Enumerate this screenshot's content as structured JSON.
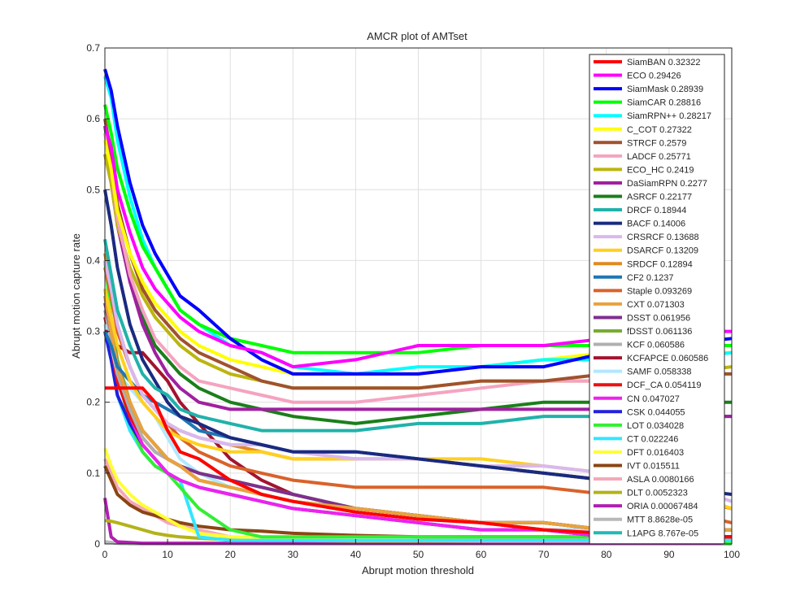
{
  "chart_data": {
    "type": "line",
    "title": "AMCR plot of AMTset",
    "xlabel": "Abrupt motion threshold",
    "ylabel": "Abrupt motion capture rate",
    "xlim": [
      0,
      100
    ],
    "ylim": [
      0,
      0.7
    ],
    "xticks": [
      "0",
      "10",
      "20",
      "30",
      "40",
      "50",
      "60",
      "70",
      "80",
      "90",
      "100"
    ],
    "yticks": [
      "0",
      "0.1",
      "0.2",
      "0.3",
      "0.4",
      "0.5",
      "0.6",
      "0.7"
    ],
    "grid": true,
    "legend_position": "top-right",
    "x": [
      0,
      1,
      2,
      4,
      6,
      8,
      10,
      12,
      15,
      20,
      25,
      30,
      40,
      50,
      60,
      70,
      80,
      90,
      100
    ],
    "series": [
      {
        "name": "SiamBAN 0.32322",
        "color": "#ff0000",
        "values": [
          0.22,
          0.22,
          0.22,
          0.22,
          0.22,
          0.2,
          0.16,
          0.13,
          0.12,
          0.09,
          0.07,
          0.06,
          0.045,
          0.035,
          0.03,
          0.02,
          0.015,
          0.01,
          0.01
        ]
      },
      {
        "name": "ECO 0.29426",
        "color": "#ff00ff",
        "values": [
          0.59,
          0.56,
          0.5,
          0.44,
          0.39,
          0.36,
          0.34,
          0.32,
          0.3,
          0.28,
          0.27,
          0.25,
          0.26,
          0.28,
          0.28,
          0.28,
          0.29,
          0.3,
          0.3
        ]
      },
      {
        "name": "SiamMask 0.28939",
        "color": "#0000ff",
        "values": [
          0.67,
          0.64,
          0.59,
          0.51,
          0.45,
          0.41,
          0.38,
          0.35,
          0.33,
          0.29,
          0.26,
          0.24,
          0.24,
          0.24,
          0.25,
          0.25,
          0.27,
          0.28,
          0.29
        ]
      },
      {
        "name": "SiamCAR 0.28816",
        "color": "#00ff00",
        "values": [
          0.62,
          0.58,
          0.53,
          0.47,
          0.42,
          0.39,
          0.36,
          0.33,
          0.31,
          0.29,
          0.28,
          0.27,
          0.27,
          0.27,
          0.28,
          0.28,
          0.28,
          0.28,
          0.28
        ]
      },
      {
        "name": "SiamRPN++ 0.28217",
        "color": "#00ffff",
        "values": [
          0.66,
          0.63,
          0.57,
          0.49,
          0.43,
          0.39,
          0.36,
          0.33,
          0.31,
          0.28,
          0.27,
          0.25,
          0.24,
          0.25,
          0.25,
          0.26,
          0.26,
          0.26,
          0.27
        ]
      },
      {
        "name": "C_COT 0.27322",
        "color": "#ffff00",
        "values": [
          0.57,
          0.53,
          0.47,
          0.41,
          0.37,
          0.34,
          0.32,
          0.3,
          0.28,
          0.26,
          0.25,
          0.24,
          0.24,
          0.24,
          0.25,
          0.26,
          0.27,
          0.27,
          0.27
        ]
      },
      {
        "name": "STRCF 0.2579",
        "color": "#a0522d",
        "values": [
          0.6,
          0.55,
          0.48,
          0.41,
          0.36,
          0.33,
          0.31,
          0.29,
          0.27,
          0.25,
          0.23,
          0.22,
          0.22,
          0.22,
          0.23,
          0.23,
          0.24,
          0.24,
          0.24
        ]
      },
      {
        "name": "LADCF 0.25771",
        "color": "#f5a3c0",
        "values": [
          0.58,
          0.53,
          0.46,
          0.38,
          0.33,
          0.29,
          0.27,
          0.25,
          0.23,
          0.22,
          0.21,
          0.2,
          0.2,
          0.21,
          0.22,
          0.23,
          0.23,
          0.24,
          0.24
        ]
      },
      {
        "name": "ECO_HC 0.2419",
        "color": "#bcb50f",
        "values": [
          0.55,
          0.51,
          0.45,
          0.39,
          0.35,
          0.32,
          0.3,
          0.28,
          0.26,
          0.24,
          0.23,
          0.22,
          0.22,
          0.22,
          0.23,
          0.23,
          0.23,
          0.24,
          0.25
        ]
      },
      {
        "name": "DaSiamRPN 0.2277",
        "color": "#a020a0",
        "values": [
          0.55,
          0.51,
          0.45,
          0.37,
          0.31,
          0.27,
          0.24,
          0.22,
          0.2,
          0.19,
          0.19,
          0.19,
          0.19,
          0.19,
          0.19,
          0.19,
          0.19,
          0.18,
          0.18
        ]
      },
      {
        "name": "ASRCF 0.22177",
        "color": "#1a7f1a",
        "values": [
          0.59,
          0.53,
          0.46,
          0.38,
          0.32,
          0.28,
          0.26,
          0.24,
          0.22,
          0.2,
          0.19,
          0.18,
          0.17,
          0.18,
          0.19,
          0.2,
          0.2,
          0.2,
          0.2
        ]
      },
      {
        "name": "DRCF 0.18944",
        "color": "#20b2aa",
        "values": [
          0.43,
          0.38,
          0.33,
          0.28,
          0.24,
          0.22,
          0.21,
          0.19,
          0.18,
          0.17,
          0.16,
          0.16,
          0.16,
          0.17,
          0.17,
          0.18,
          0.18,
          0.18,
          0.18
        ]
      },
      {
        "name": "BACF 0.14006",
        "color": "#1a2a80",
        "values": [
          0.5,
          0.45,
          0.39,
          0.31,
          0.26,
          0.23,
          0.2,
          0.18,
          0.17,
          0.15,
          0.14,
          0.13,
          0.13,
          0.12,
          0.11,
          0.1,
          0.09,
          0.08,
          0.07
        ]
      },
      {
        "name": "CRSRCF 0.13688",
        "color": "#d8b8f0",
        "values": [
          0.4,
          0.36,
          0.31,
          0.25,
          0.21,
          0.19,
          0.17,
          0.16,
          0.15,
          0.14,
          0.14,
          0.13,
          0.12,
          0.12,
          0.11,
          0.11,
          0.1,
          0.09,
          0.06
        ]
      },
      {
        "name": "DSARCF 0.13209",
        "color": "#ffd020",
        "values": [
          0.36,
          0.32,
          0.28,
          0.23,
          0.2,
          0.18,
          0.16,
          0.15,
          0.14,
          0.13,
          0.13,
          0.12,
          0.12,
          0.12,
          0.12,
          0.11,
          0.1,
          0.08,
          0.05
        ]
      },
      {
        "name": "SRDCF 0.12894",
        "color": "#e08a20",
        "values": [
          0.41,
          0.36,
          0.31,
          0.25,
          0.21,
          0.19,
          0.17,
          0.16,
          0.15,
          0.14,
          0.13,
          0.12,
          0.12,
          0.12,
          0.11,
          0.1,
          0.09,
          0.07,
          0.05
        ]
      },
      {
        "name": "CF2 0.1237",
        "color": "#1f77b4",
        "values": [
          0.3,
          0.28,
          0.25,
          0.23,
          0.21,
          0.2,
          0.19,
          0.18,
          0.16,
          0.15,
          0.14,
          0.13,
          0.13,
          0.12,
          0.11,
          0.1,
          0.09,
          0.07,
          0.05
        ]
      },
      {
        "name": "Staple 0.093269",
        "color": "#d9622b",
        "values": [
          0.39,
          0.35,
          0.3,
          0.25,
          0.21,
          0.19,
          0.17,
          0.15,
          0.13,
          0.11,
          0.1,
          0.09,
          0.08,
          0.08,
          0.08,
          0.08,
          0.07,
          0.05,
          0.03
        ]
      },
      {
        "name": "CXT 0.071303",
        "color": "#e8a33d",
        "values": [
          0.35,
          0.3,
          0.25,
          0.2,
          0.16,
          0.14,
          0.12,
          0.11,
          0.09,
          0.08,
          0.07,
          0.06,
          0.05,
          0.04,
          0.03,
          0.03,
          0.02,
          0.02,
          0.02
        ]
      },
      {
        "name": "DSST 0.061956",
        "color": "#7e2f8e",
        "values": [
          0.34,
          0.3,
          0.25,
          0.2,
          0.16,
          0.14,
          0.12,
          0.11,
          0.1,
          0.09,
          0.08,
          0.07,
          0.05,
          0.04,
          0.03,
          0.03,
          0.02,
          0.02,
          0.02
        ]
      },
      {
        "name": "fDSST 0.061136",
        "color": "#77ac30",
        "values": [
          0.36,
          0.31,
          0.26,
          0.2,
          0.16,
          0.14,
          0.12,
          0.11,
          0.1,
          0.09,
          0.08,
          0.07,
          0.05,
          0.04,
          0.03,
          0.03,
          0.02,
          0.02,
          0.02
        ]
      },
      {
        "name": "KCF 0.060586",
        "color": "#b0b0b0",
        "values": [
          0.33,
          0.29,
          0.24,
          0.19,
          0.15,
          0.13,
          0.12,
          0.11,
          0.1,
          0.09,
          0.08,
          0.07,
          0.05,
          0.04,
          0.03,
          0.03,
          0.02,
          0.02,
          0.02
        ]
      },
      {
        "name": "KCFAPCE 0.060586",
        "color": "#a2142f",
        "values": [
          0.3,
          0.3,
          0.28,
          0.27,
          0.27,
          0.25,
          0.23,
          0.2,
          0.17,
          0.12,
          0.09,
          0.07,
          0.05,
          0.04,
          0.03,
          0.03,
          0.02,
          0.02,
          0.02
        ]
      },
      {
        "name": "SAMF 0.058338",
        "color": "#b0e8ff",
        "values": [
          0.31,
          0.28,
          0.24,
          0.22,
          0.2,
          0.18,
          0.15,
          0.12,
          0.1,
          0.08,
          0.07,
          0.06,
          0.05,
          0.04,
          0.03,
          0.02,
          0.02,
          0.02,
          0.02
        ]
      },
      {
        "name": "DCF_CA 0.054119",
        "color": "#ee1111",
        "values": [
          0.32,
          0.28,
          0.23,
          0.18,
          0.15,
          0.13,
          0.12,
          0.11,
          0.09,
          0.08,
          0.07,
          0.06,
          0.05,
          0.04,
          0.03,
          0.02,
          0.02,
          0.01,
          0.01
        ]
      },
      {
        "name": "CN 0.047027",
        "color": "#ee22ee",
        "values": [
          0.35,
          0.3,
          0.24,
          0.18,
          0.14,
          0.12,
          0.1,
          0.09,
          0.08,
          0.07,
          0.06,
          0.05,
          0.04,
          0.03,
          0.02,
          0.02,
          0.01,
          0.01,
          0.01
        ]
      },
      {
        "name": "CSK 0.044055",
        "color": "#2020dd",
        "values": [
          0.3,
          0.26,
          0.21,
          0.17,
          0.14,
          0.12,
          0.1,
          0.09,
          0.08,
          0.07,
          0.06,
          0.05,
          0.04,
          0.03,
          0.02,
          0.02,
          0.01,
          0.01,
          0.01
        ]
      },
      {
        "name": "LOT 0.034028",
        "color": "#33ee33",
        "values": [
          0.4,
          0.32,
          0.24,
          0.17,
          0.13,
          0.11,
          0.1,
          0.08,
          0.05,
          0.02,
          0.01,
          0.01,
          0.01,
          0.01,
          0.01,
          0.01,
          0.01,
          0.01,
          0.0
        ]
      },
      {
        "name": "CT 0.022246",
        "color": "#33e6ff",
        "values": [
          0.3,
          0.26,
          0.21,
          0.16,
          0.13,
          0.11,
          0.1,
          0.09,
          0.01,
          0.005,
          0.005,
          0.005,
          0.005,
          0.005,
          0.005,
          0.005,
          0.005,
          0.005,
          0.005
        ]
      },
      {
        "name": "DFT 0.016403",
        "color": "#ffff33",
        "values": [
          0.135,
          0.11,
          0.09,
          0.07,
          0.055,
          0.045,
          0.035,
          0.025,
          0.015,
          0.01,
          0.008,
          0.006,
          0.005,
          0.005,
          0.005,
          0.005,
          0.005,
          0.005,
          0.005
        ]
      },
      {
        "name": "IVT 0.015511",
        "color": "#8b4513",
        "values": [
          0.11,
          0.09,
          0.07,
          0.055,
          0.045,
          0.04,
          0.035,
          0.03,
          0.025,
          0.02,
          0.018,
          0.015,
          0.012,
          0.01,
          0.01,
          0.01,
          0.01,
          0.01,
          0.01
        ]
      },
      {
        "name": "ASLA 0.0080166",
        "color": "#f4a8b8",
        "values": [
          0.12,
          0.1,
          0.08,
          0.06,
          0.05,
          0.04,
          0.03,
          0.025,
          0.02,
          0.01,
          0.008,
          0.006,
          0.005,
          0.005,
          0.004,
          0.004,
          0.004,
          0.004,
          0.004
        ]
      },
      {
        "name": "DLT 0.0052323",
        "color": "#b3b31a",
        "values": [
          0.033,
          0.032,
          0.03,
          0.025,
          0.02,
          0.015,
          0.012,
          0.01,
          0.008,
          0.006,
          0.005,
          0.005,
          0.004,
          0.004,
          0.004,
          0.004,
          0.004,
          0.004,
          0.004
        ]
      },
      {
        "name": "ORIA 0.00067484",
        "color": "#b020b0",
        "values": [
          0.065,
          0.01,
          0.003,
          0.002,
          0.001,
          0.001,
          0.001,
          0.001,
          0.001,
          0.001,
          0.001,
          0.001,
          0.001,
          0.001,
          0.001,
          0.001,
          0.001,
          0.001,
          0.001
        ]
      },
      {
        "name": "MTT 8.8628e-05",
        "color": "#b8b8b8",
        "values": [
          0.003,
          0.002,
          0.001,
          0.0005,
          0.0003,
          0.0002,
          0.0001,
          0.0001,
          0.0001,
          0.0001,
          0.0001,
          0.0001,
          0.0001,
          0.0001,
          0.0001,
          0.0001,
          0.0001,
          0.0001,
          0.0001
        ]
      },
      {
        "name": "L1APG 8.767e-05",
        "color": "#22b8b8",
        "values": [
          0.003,
          0.002,
          0.001,
          0.0005,
          0.0003,
          0.0002,
          0.0001,
          0.0001,
          0.0001,
          0.0001,
          0.0001,
          0.0001,
          0.0001,
          0.0001,
          0.0001,
          0.0001,
          0.0001,
          0.0001,
          0.0001
        ]
      }
    ]
  }
}
